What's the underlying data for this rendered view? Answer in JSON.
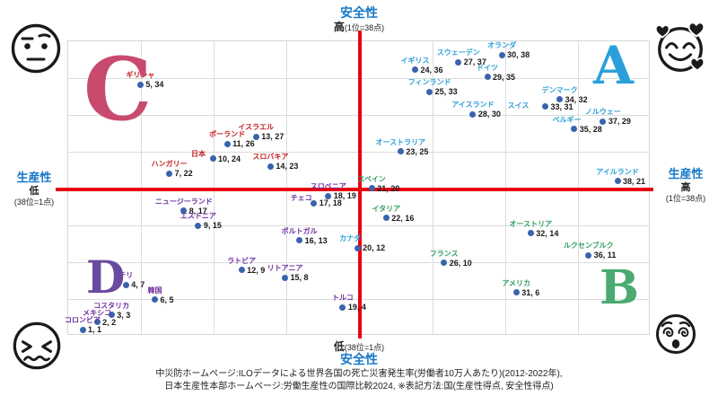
{
  "axis_top": {
    "label": "安全性",
    "scale": "高",
    "note": "(1位=38点)"
  },
  "axis_bottom": {
    "scale": "低",
    "note": "(38位=1点)",
    "label": "安全性"
  },
  "axis_left": {
    "label": "生産性",
    "scale": "低",
    "note": "(38位=1点)"
  },
  "axis_right": {
    "label": "生産性",
    "scale": "高",
    "note": "(1位=38点)"
  },
  "quadrants": {
    "c": {
      "label": "C",
      "color": "#c84a6e"
    },
    "a": {
      "label": "A",
      "color": "#29a0da"
    },
    "d": {
      "label": "D",
      "color": "#6a4a9e"
    },
    "b": {
      "label": "B",
      "color": "#4aaa71"
    }
  },
  "emojis": {
    "top_left": "neutral-face-with-raised-eyebrow",
    "top_right": "smiling-face-with-hearts",
    "bottom_left": "confounded-face",
    "bottom_right": "dizzy-face"
  },
  "footer": {
    "line1": "中災防ホームページ:ILOデータによる世界各国の死亡災害発生率(労働者10万人あたり)(2012-2022年),",
    "line2": "日本生産性本部ホームページ:労働生産性の国際比較2024, ※表記方法:国(生産性得点, 安全性得点)"
  },
  "colors": {
    "axis_red": "#e60012",
    "dot_blue": "#3a63ad",
    "title_blue": "#1778c8",
    "grid": "#dcdcdc",
    "groups": {
      "red": "#c41f1f",
      "blue": "#2b9fd8",
      "green": "#2f9e5f",
      "purple": "#7030a0"
    }
  },
  "chart_data": {
    "type": "scatter",
    "title": "",
    "xlabel": "生産性 (低 38位=1点 → 高 1位=38点)",
    "ylabel": "安全性 (低 38位=1点 → 高 1位=38点)",
    "xlim": [
      0,
      39
    ],
    "ylim": [
      0,
      39
    ],
    "grid": true,
    "note": "表記方法:国(生産性得点, 安全性得点)",
    "points": [
      {
        "name": "ギリシャ",
        "x": 5,
        "y": 34,
        "group": "red"
      },
      {
        "name": "イスラエル",
        "x": 13,
        "y": 27,
        "group": "red"
      },
      {
        "name": "ポーランド",
        "x": 11,
        "y": 26,
        "group": "red"
      },
      {
        "name": "日本",
        "x": 10,
        "y": 24,
        "group": "red",
        "ndx": -16,
        "ndy": 5
      },
      {
        "name": "ハンガリー",
        "x": 7,
        "y": 22,
        "group": "red"
      },
      {
        "name": "スロバキア",
        "x": 14,
        "y": 23,
        "group": "red"
      },
      {
        "name": "オランダ",
        "x": 30,
        "y": 38,
        "group": "blue"
      },
      {
        "name": "スウェーデン",
        "x": 27,
        "y": 37,
        "group": "blue"
      },
      {
        "name": "イギリス",
        "x": 24,
        "y": 36,
        "group": "blue"
      },
      {
        "name": "ドイツ",
        "x": 29,
        "y": 35,
        "group": "blue"
      },
      {
        "name": "フィンランド",
        "x": 25,
        "y": 33,
        "group": "blue"
      },
      {
        "name": "デンマーク",
        "x": 34,
        "y": 32,
        "group": "blue"
      },
      {
        "name": "スイス",
        "x": 33,
        "y": 31,
        "group": "blue",
        "ndx": -30,
        "ndy": 9
      },
      {
        "name": "アイスランド",
        "x": 28,
        "y": 30,
        "group": "blue"
      },
      {
        "name": "ノルウェー",
        "x": 37,
        "y": 29,
        "group": "blue"
      },
      {
        "name": "ベルギー",
        "x": 35,
        "y": 28,
        "group": "blue",
        "ndx": -8
      },
      {
        "name": "オーストラリア",
        "x": 23,
        "y": 25,
        "group": "blue"
      },
      {
        "name": "アイルランド",
        "x": 38,
        "y": 21,
        "group": "blue"
      },
      {
        "name": "カナダ",
        "x": 20,
        "y": 12,
        "group": "blue",
        "ndx": -8
      },
      {
        "name": "スペイン",
        "x": 21,
        "y": 20,
        "group": "green"
      },
      {
        "name": "イタリア",
        "x": 22,
        "y": 16,
        "group": "green"
      },
      {
        "name": "オーストリア",
        "x": 32,
        "y": 14,
        "group": "green"
      },
      {
        "name": "ルクセンブルク",
        "x": 36,
        "y": 11,
        "group": "green"
      },
      {
        "name": "フランス",
        "x": 26,
        "y": 10,
        "group": "green"
      },
      {
        "name": "アメリカ",
        "x": 31,
        "y": 6,
        "group": "green"
      },
      {
        "name": "スロベニア",
        "x": 18,
        "y": 19,
        "group": "purple"
      },
      {
        "name": "チェコ",
        "x": 17,
        "y": 18,
        "group": "purple",
        "ndx": -14,
        "ndy": 5
      },
      {
        "name": "ニュージーランド",
        "x": 8,
        "y": 17,
        "group": "purple"
      },
      {
        "name": "エストニア",
        "x": 9,
        "y": 15,
        "group": "purple"
      },
      {
        "name": "ポルトガル",
        "x": 16,
        "y": 13,
        "group": "purple"
      },
      {
        "name": "ラトビア",
        "x": 12,
        "y": 9,
        "group": "purple"
      },
      {
        "name": "リトアニア",
        "x": 15,
        "y": 8,
        "group": "purple"
      },
      {
        "name": "チリ",
        "x": 4,
        "y": 7,
        "group": "purple"
      },
      {
        "name": "韓国",
        "x": 6,
        "y": 5,
        "group": "purple"
      },
      {
        "name": "コスタリカ",
        "x": 3,
        "y": 3,
        "group": "purple"
      },
      {
        "name": "メキシコ",
        "x": 2,
        "y": 2,
        "group": "purple"
      },
      {
        "name": "コロンビア",
        "x": 1,
        "y": 1,
        "group": "purple"
      },
      {
        "name": "トルコ",
        "x": 19,
        "y": 4,
        "group": "purple"
      }
    ]
  }
}
